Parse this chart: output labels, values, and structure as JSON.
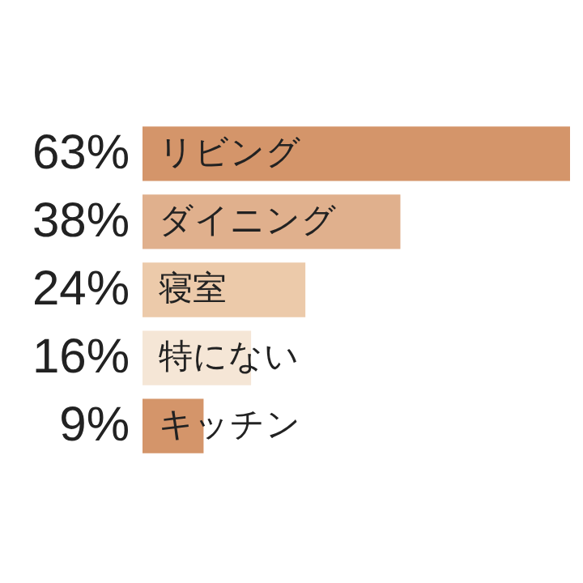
{
  "chart_data": {
    "type": "bar",
    "orientation": "horizontal",
    "categories": [
      "リビング",
      "ダイニング",
      "寝室",
      "特にない",
      "キッチン"
    ],
    "values": [
      63,
      38,
      24,
      16,
      9
    ],
    "value_labels": [
      "63%",
      "38%",
      "24%",
      "16%",
      "9%"
    ],
    "colors": [
      "#d4956a",
      "#e0b08d",
      "#eccaaa",
      "#f5e6d6",
      "#d4956a"
    ]
  }
}
